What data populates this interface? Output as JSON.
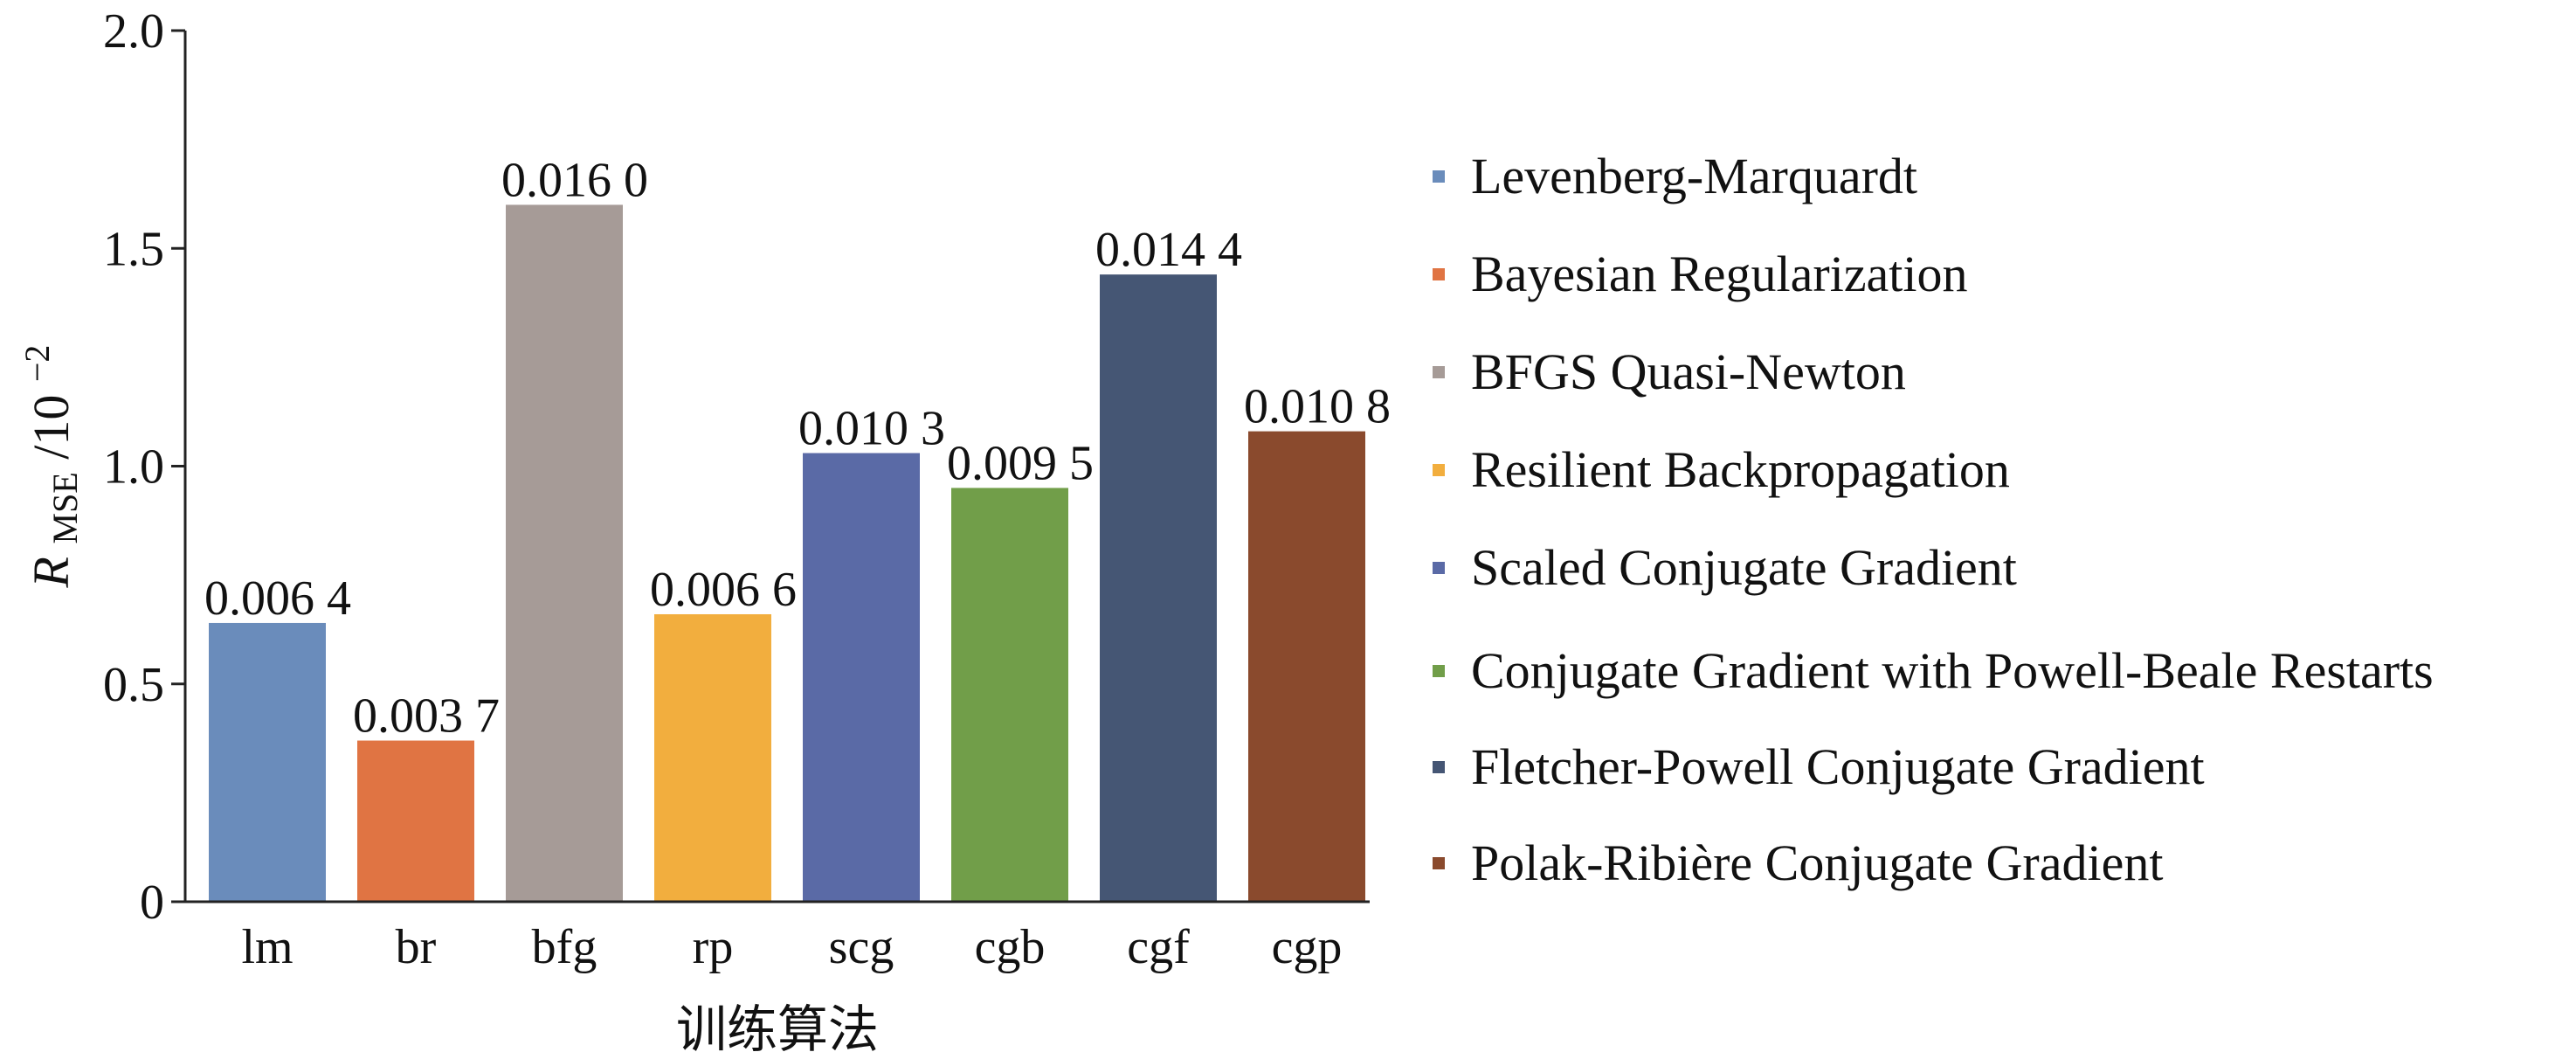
{
  "chart_data": {
    "type": "bar",
    "categories": [
      "lm",
      "br",
      "bfg",
      "rp",
      "scg",
      "cgb",
      "cgf",
      "cgp"
    ],
    "values": [
      0.64,
      0.37,
      1.6,
      0.66,
      1.03,
      0.95,
      1.44,
      1.08
    ],
    "value_labels": [
      "0.006 4",
      "0.003 7",
      "0.016 0",
      "0.006 6",
      "0.010 3",
      "0.009 5",
      "0.014 4",
      "0.010 8"
    ],
    "colors": [
      "#6a8cbb",
      "#e07443",
      "#a69b97",
      "#f2ae3e",
      "#5a6aa6",
      "#719e49",
      "#455674",
      "#8a4a2d"
    ],
    "xlabel": "训练算法",
    "ylabel": {
      "main": "R",
      "sub": "MSE",
      "suffix": "/10",
      "sup": "−2"
    },
    "ylim": [
      0,
      2.0
    ],
    "yticks": [
      0,
      0.5,
      1.0,
      1.5,
      2.0
    ],
    "ytick_labels": [
      "0",
      "0.5",
      "1.0",
      "1.5",
      "2.0"
    ],
    "grid": false,
    "legend_position": "right",
    "legend": [
      "Levenberg-Marquardt",
      "Bayesian Regularization",
      "BFGS Quasi-Newton",
      "Resilient Backpropagation",
      "Scaled Conjugate Gradient",
      "Conjugate Gradient with Powell-Beale Restarts",
      "Fletcher-Powell Conjugate Gradient",
      "Polak-Ribière Conjugate Gradient"
    ]
  }
}
